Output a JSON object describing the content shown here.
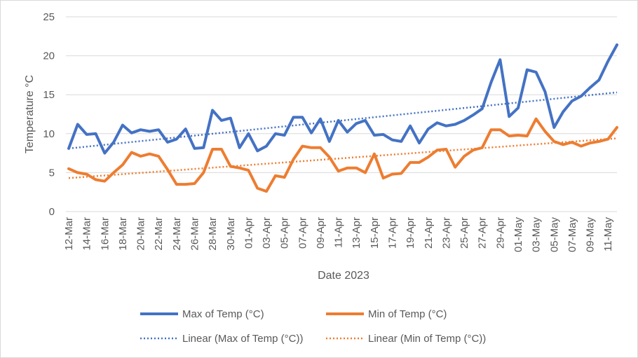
{
  "chart_data": {
    "type": "line",
    "title": "",
    "xlabel": "Date 2023",
    "ylabel": "Temperature °C",
    "ylim": [
      0,
      25
    ],
    "yticks": [
      0,
      5,
      10,
      15,
      20,
      25
    ],
    "grid": "horizontal",
    "legend_position": "bottom",
    "x_start": "12-Mar",
    "x_tick_labels": [
      "12-Mar",
      "14-Mar",
      "16-Mar",
      "18-Mar",
      "20-Mar",
      "22-Mar",
      "24-Mar",
      "26-Mar",
      "28-Mar",
      "30-Mar",
      "01-Apr",
      "03-Apr",
      "05-Apr",
      "07-Apr",
      "09-Apr",
      "11-Apr",
      "13-Apr",
      "15-Apr",
      "17-Apr",
      "19-Apr",
      "21-Apr",
      "23-Apr",
      "25-Apr",
      "27-Apr",
      "29-Apr",
      "01-May",
      "03-May",
      "05-May",
      "07-May",
      "09-May",
      "11-May"
    ],
    "x": [
      "12-Mar",
      "13-Mar",
      "14-Mar",
      "15-Mar",
      "16-Mar",
      "17-Mar",
      "18-Mar",
      "19-Mar",
      "20-Mar",
      "21-Mar",
      "22-Mar",
      "23-Mar",
      "24-Mar",
      "25-Mar",
      "26-Mar",
      "27-Mar",
      "28-Mar",
      "29-Mar",
      "30-Mar",
      "31-Mar",
      "01-Apr",
      "02-Apr",
      "03-Apr",
      "04-Apr",
      "05-Apr",
      "06-Apr",
      "07-Apr",
      "08-Apr",
      "09-Apr",
      "10-Apr",
      "11-Apr",
      "12-Apr",
      "13-Apr",
      "14-Apr",
      "15-Apr",
      "16-Apr",
      "17-Apr",
      "18-Apr",
      "19-Apr",
      "20-Apr",
      "21-Apr",
      "22-Apr",
      "23-Apr",
      "24-Apr",
      "25-Apr",
      "26-Apr",
      "27-Apr",
      "28-Apr",
      "29-Apr",
      "30-Apr",
      "01-May",
      "02-May",
      "03-May",
      "04-May",
      "05-May",
      "06-May",
      "07-May",
      "08-May",
      "09-May",
      "10-May",
      "11-May",
      "12-May"
    ],
    "series": [
      {
        "name": "Max of Temp (°C)",
        "color": "#4472C4",
        "style": "solid",
        "values": [
          8.1,
          11.2,
          9.9,
          10.0,
          7.5,
          8.9,
          11.1,
          10.1,
          10.5,
          10.3,
          10.5,
          8.9,
          9.3,
          10.6,
          8.1,
          8.2,
          13.0,
          11.7,
          12.0,
          8.2,
          10.0,
          7.8,
          8.4,
          10.0,
          9.8,
          12.1,
          12.1,
          10.1,
          11.9,
          9.0,
          11.7,
          10.2,
          11.3,
          11.7,
          9.8,
          9.9,
          9.2,
          9.0,
          11.0,
          8.8,
          10.6,
          11.4,
          11.0,
          11.2,
          11.7,
          12.4,
          13.2,
          16.6,
          19.5,
          12.2,
          13.3,
          18.2,
          17.9,
          15.4,
          10.8,
          12.8,
          14.2,
          14.8,
          15.9,
          16.9,
          19.3,
          21.4
        ]
      },
      {
        "name": "Min of Temp (°C)",
        "color": "#ED7D31",
        "style": "solid",
        "values": [
          5.5,
          5.0,
          4.8,
          4.1,
          3.9,
          5.0,
          6.0,
          7.6,
          7.1,
          7.4,
          7.1,
          5.4,
          3.5,
          3.5,
          3.6,
          5.0,
          8.0,
          8.0,
          5.8,
          5.6,
          5.3,
          3.0,
          2.6,
          4.6,
          4.4,
          6.7,
          8.4,
          8.2,
          8.2,
          7.0,
          5.2,
          5.6,
          5.6,
          5.0,
          7.4,
          4.3,
          4.8,
          4.9,
          6.3,
          6.3,
          7.0,
          7.9,
          8.0,
          5.7,
          7.1,
          7.9,
          8.2,
          10.5,
          10.5,
          9.7,
          9.8,
          9.7,
          11.9,
          10.3,
          9.0,
          8.6,
          8.9,
          8.4,
          8.8,
          9.0,
          9.3,
          10.8
        ]
      },
      {
        "name": "Linear (Max of Temp (°C))",
        "color": "#4472C4",
        "style": "dotted",
        "trend_from": 0,
        "values_endpoints": [
          8.1,
          15.3
        ]
      },
      {
        "name": "Linear (Min of Temp (°C))",
        "color": "#ED7D31",
        "style": "dotted",
        "trend_from": 1,
        "values_endpoints": [
          4.3,
          9.4
        ]
      }
    ]
  }
}
